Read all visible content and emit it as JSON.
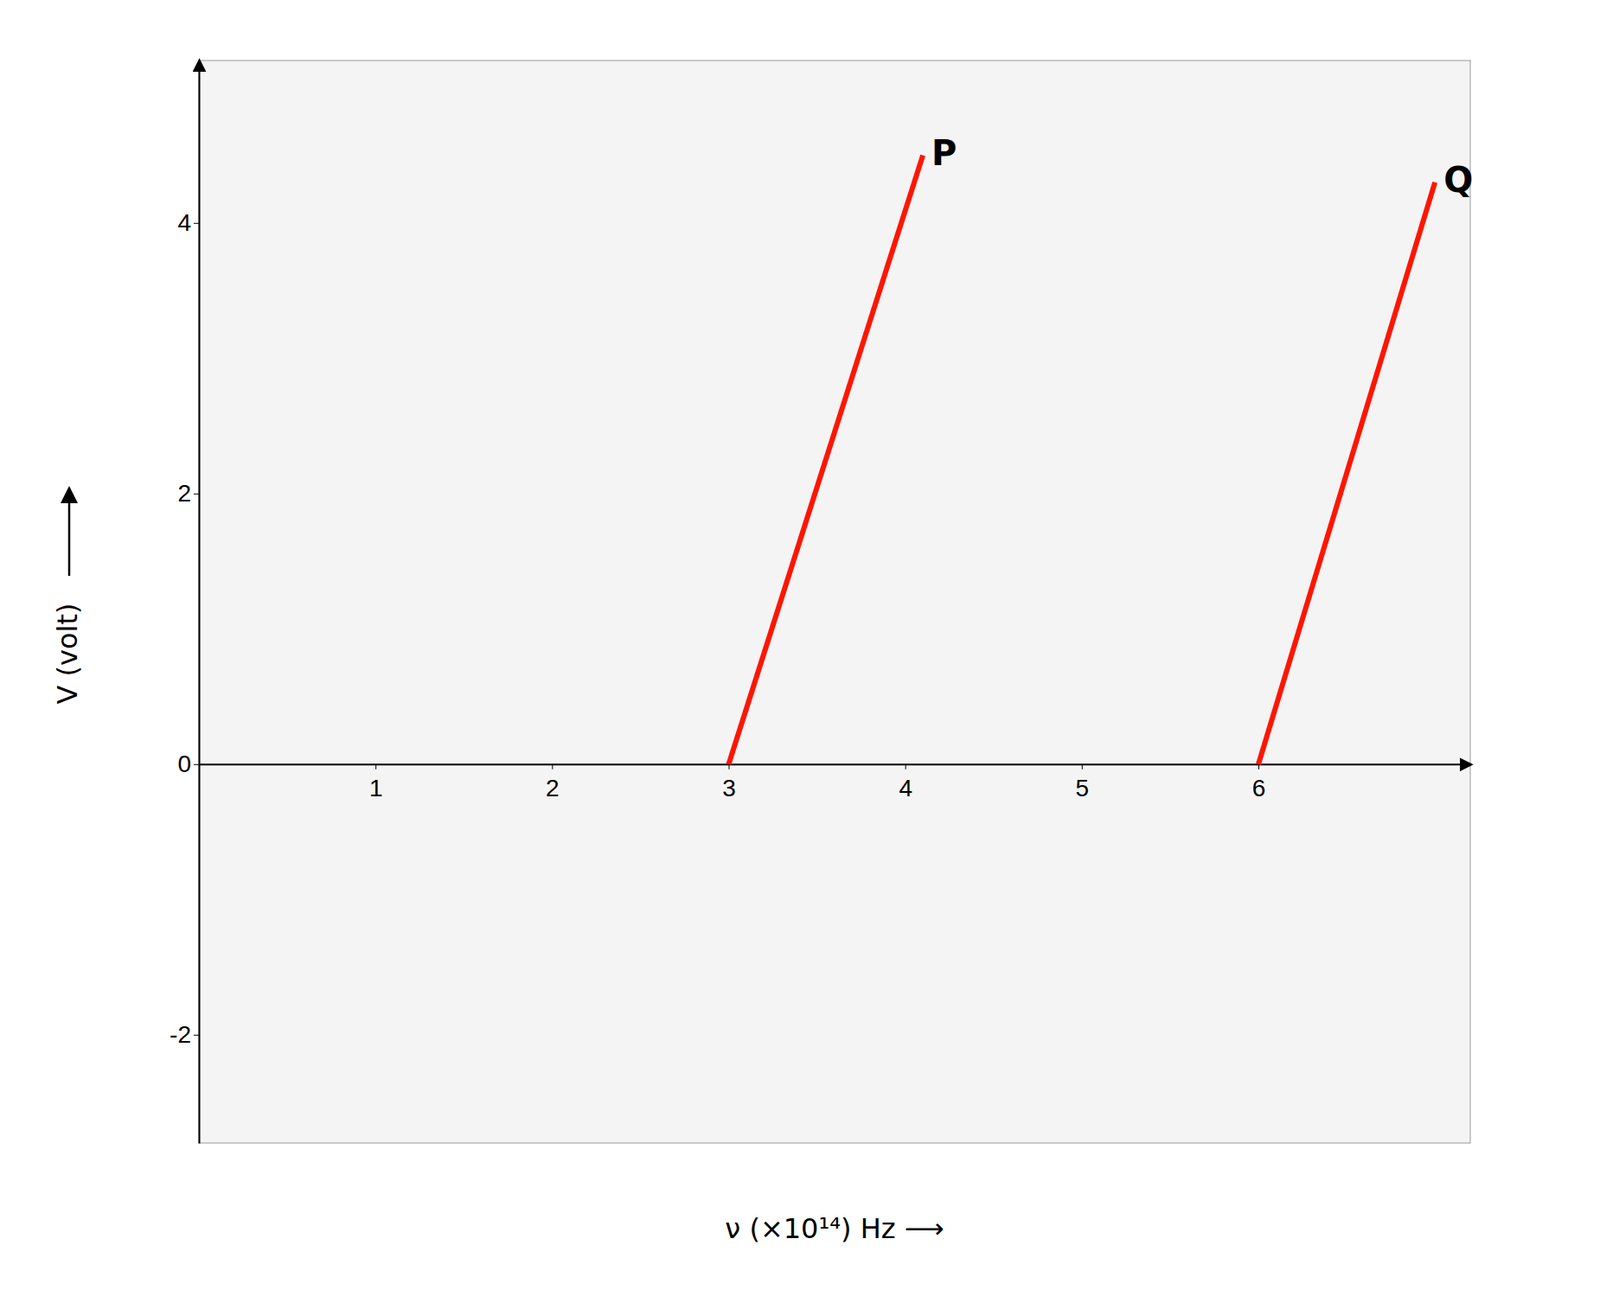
{
  "chart_data": {
    "type": "line",
    "x_label": "ν (×10¹⁴) Hz ⟶",
    "y_label": "V (volt)",
    "xlim": [
      0,
      7.2
    ],
    "ylim": [
      -2.8,
      5.2
    ],
    "xticks": [
      1,
      2,
      3,
      4,
      5,
      6
    ],
    "yticks": [
      -2,
      0,
      2,
      4
    ],
    "grid": false,
    "series": [
      {
        "name": "P",
        "color": "#ff1500",
        "x": [
          3.0,
          4.1
        ],
        "values": [
          0.0,
          4.5
        ]
      },
      {
        "name": "Q",
        "color": "#ff1500",
        "x": [
          6.0,
          7.0
        ],
        "values": [
          0.0,
          4.3
        ]
      }
    ]
  }
}
